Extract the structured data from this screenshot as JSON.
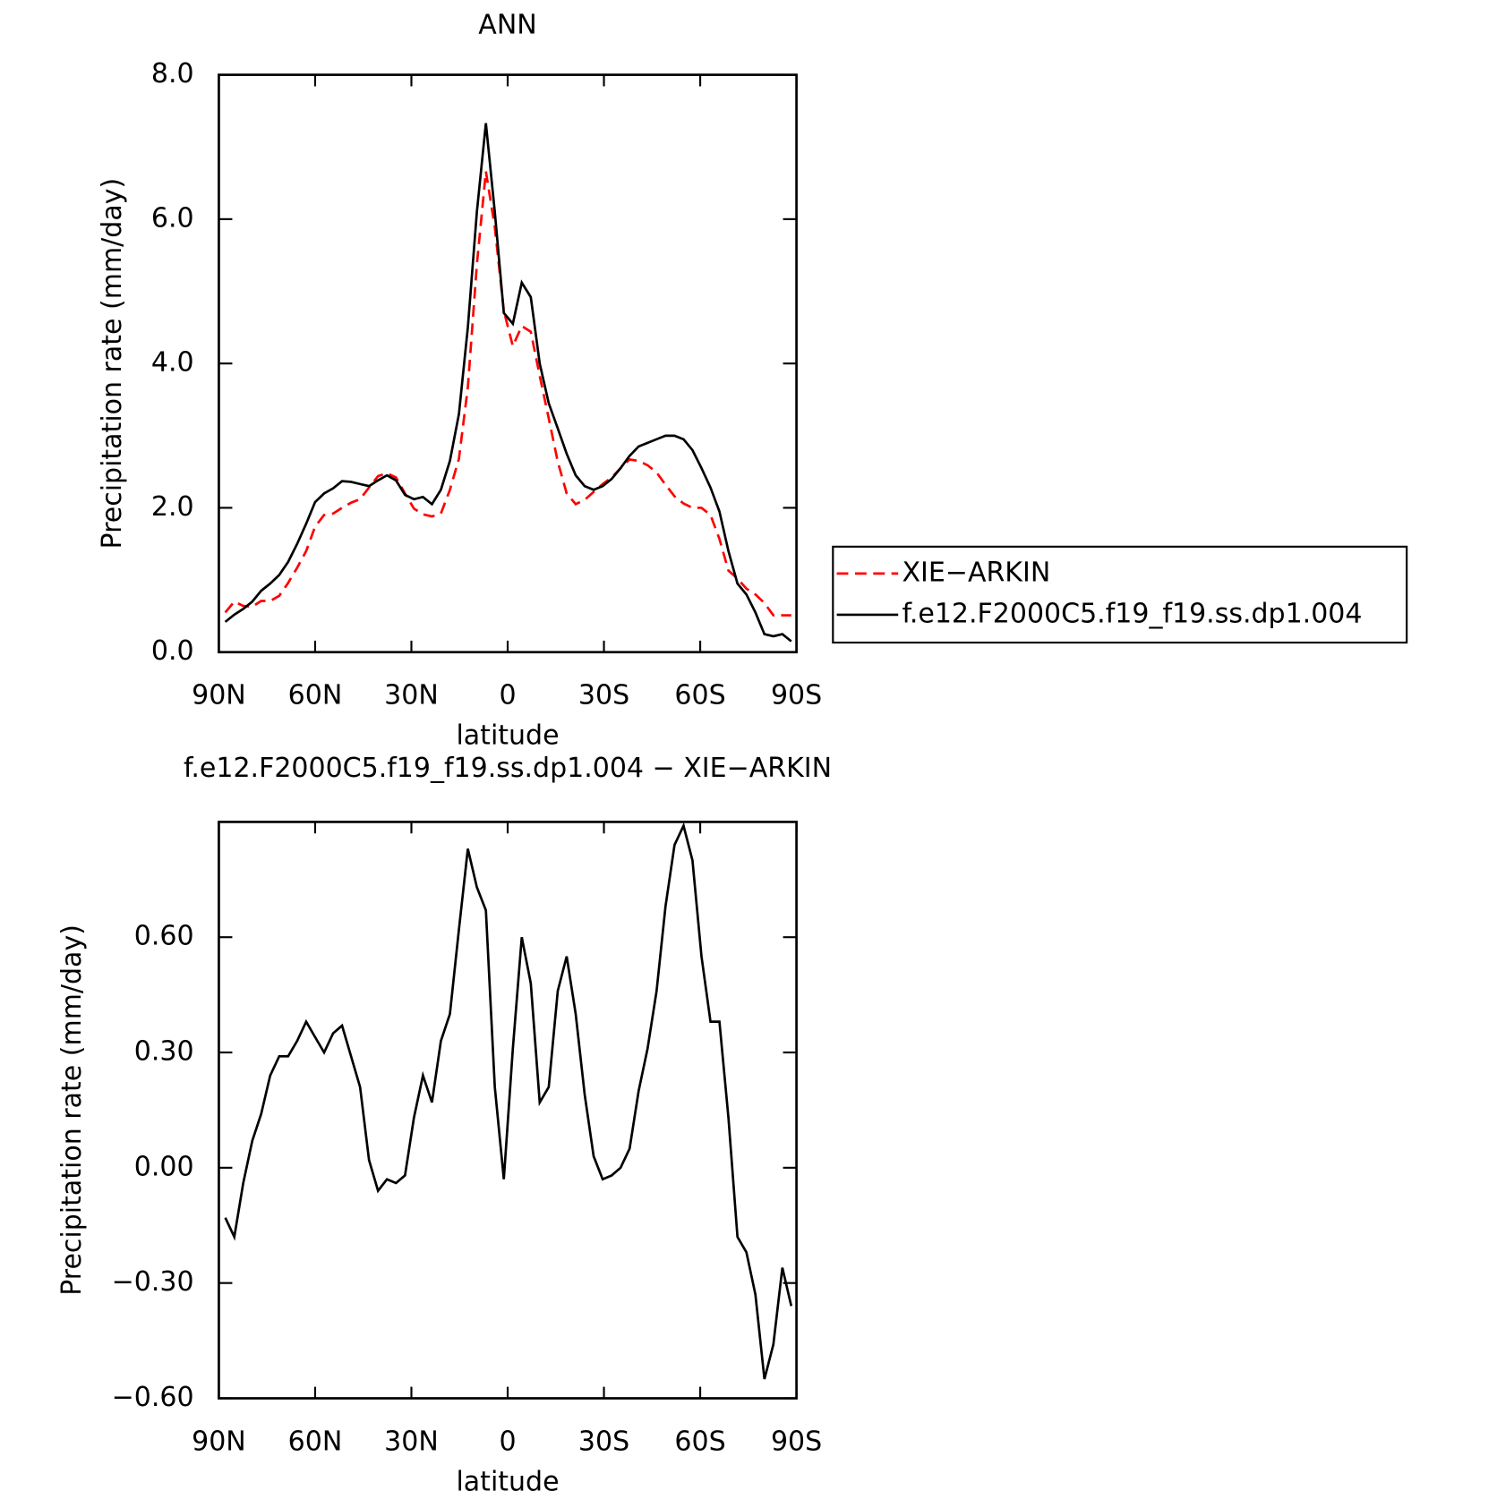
{
  "chart_data": [
    {
      "type": "line",
      "title": "ANN",
      "xlabel": "latitude",
      "ylabel": "Precipitation rate (mm/day)",
      "xlim": [
        90,
        -90
      ],
      "xticks": [
        {
          "value": 90,
          "label": "90N"
        },
        {
          "value": 60,
          "label": "60N"
        },
        {
          "value": 30,
          "label": "30N"
        },
        0,
        {
          "value": -30,
          "label": "30S"
        },
        {
          "value": -60,
          "label": "60S"
        },
        {
          "value": -90,
          "label": "90S"
        }
      ],
      "ylim": [
        0,
        8
      ],
      "yticks": [
        {
          "value": 0,
          "label": "0.0"
        },
        {
          "value": 2,
          "label": "2.0"
        },
        {
          "value": 4,
          "label": "4.0"
        },
        {
          "value": 6,
          "label": "6.0"
        },
        {
          "value": 8,
          "label": "8.0"
        }
      ],
      "legend": "right",
      "x": [
        88,
        85.2,
        82.4,
        79.6,
        76.8,
        74,
        71.2,
        68.4,
        65.6,
        62.8,
        60,
        57.2,
        54.4,
        51.6,
        48.8,
        46,
        43.2,
        40.4,
        37.6,
        34.8,
        32,
        29.2,
        26.4,
        23.6,
        20.8,
        18,
        15.2,
        12.4,
        9.6,
        6.8,
        4,
        1.2,
        -1.6,
        -4.4,
        -7.2,
        -10,
        -12.8,
        -15.6,
        -18.4,
        -21.2,
        -24,
        -26.8,
        -29.6,
        -32.4,
        -35.2,
        -38,
        -40.8,
        -43.6,
        -46.4,
        -49.2,
        -52,
        -54.8,
        -57.6,
        -60.4,
        -63.2,
        -66,
        -68.8,
        -71.6,
        -74.4,
        -77.2,
        -80,
        -82.8,
        -85.6,
        -88.4
      ],
      "series": [
        {
          "name": "XIE−ARKIN",
          "color": "#ff0000",
          "dashed": true,
          "values": [
            0.55,
            0.7,
            0.64,
            0.63,
            0.71,
            0.71,
            0.78,
            0.96,
            1.17,
            1.4,
            1.74,
            1.9,
            1.92,
            2.0,
            2.07,
            2.12,
            2.28,
            2.44,
            2.48,
            2.42,
            2.2,
            1.99,
            1.91,
            1.88,
            1.92,
            2.25,
            2.68,
            3.67,
            5.37,
            6.66,
            5.89,
            4.73,
            4.24,
            4.52,
            4.44,
            3.83,
            3.24,
            2.64,
            2.2,
            2.05,
            2.11,
            2.22,
            2.33,
            2.42,
            2.55,
            2.67,
            2.65,
            2.59,
            2.49,
            2.32,
            2.16,
            2.06,
            2.0,
            2.0,
            1.9,
            1.57,
            1.13,
            1.02,
            0.88,
            0.8,
            0.68,
            0.51,
            0.51,
            0.51
          ]
        },
        {
          "name": "f.e12.F2000C5.f19_f19.ss.dp1.004",
          "color": "#000000",
          "dashed": false,
          "values": [
            0.42,
            0.52,
            0.6,
            0.7,
            0.85,
            0.95,
            1.07,
            1.25,
            1.5,
            1.78,
            2.08,
            2.2,
            2.27,
            2.37,
            2.36,
            2.33,
            2.3,
            2.38,
            2.45,
            2.38,
            2.18,
            2.12,
            2.15,
            2.05,
            2.25,
            2.65,
            3.3,
            4.5,
            6.1,
            7.33,
            6.1,
            4.7,
            4.55,
            5.12,
            4.92,
            4.0,
            3.45,
            3.1,
            2.75,
            2.45,
            2.3,
            2.25,
            2.3,
            2.4,
            2.55,
            2.72,
            2.85,
            2.9,
            2.95,
            3.0,
            3.0,
            2.95,
            2.8,
            2.55,
            2.28,
            1.95,
            1.4,
            0.95,
            0.8,
            0.55,
            0.25,
            0.22,
            0.25,
            0.15
          ]
        }
      ]
    },
    {
      "type": "line",
      "title": "f.e12.F2000C5.f19_f19.ss.dp1.004 − XIE−ARKIN",
      "xlabel": "latitude",
      "ylabel": "Precipitation rate (mm/day)",
      "xlim": [
        90,
        -90
      ],
      "xticks": [
        {
          "value": 90,
          "label": "90N"
        },
        {
          "value": 60,
          "label": "60N"
        },
        {
          "value": 30,
          "label": "30N"
        },
        0,
        {
          "value": -30,
          "label": "30S"
        },
        {
          "value": -60,
          "label": "60S"
        },
        {
          "value": -90,
          "label": "90S"
        }
      ],
      "ylim": [
        -0.6,
        0.9
      ],
      "yticks": [
        {
          "value": -0.6,
          "label": "−0.60"
        },
        {
          "value": -0.3,
          "label": "−0.30"
        },
        {
          "value": 0,
          "label": "0.00"
        },
        {
          "value": 0.3,
          "label": "0.30"
        },
        {
          "value": 0.6,
          "label": "0.60"
        }
      ],
      "x": [
        88,
        85.2,
        82.4,
        79.6,
        76.8,
        74,
        71.2,
        68.4,
        65.6,
        62.8,
        60,
        57.2,
        54.4,
        51.6,
        48.8,
        46,
        43.2,
        40.4,
        37.6,
        34.8,
        32,
        29.2,
        26.4,
        23.6,
        20.8,
        18,
        15.2,
        12.4,
        9.6,
        6.8,
        4,
        1.2,
        -1.6,
        -4.4,
        -7.2,
        -10,
        -12.8,
        -15.6,
        -18.4,
        -21.2,
        -24,
        -26.8,
        -29.6,
        -32.4,
        -35.2,
        -38,
        -40.8,
        -43.6,
        -46.4,
        -49.2,
        -52,
        -54.8,
        -57.6,
        -60.4,
        -63.2,
        -66,
        -68.8,
        -71.6,
        -74.4,
        -77.2,
        -80,
        -82.8,
        -85.6,
        -88.4
      ],
      "color": "#000000",
      "values": [
        -0.13,
        -0.18,
        -0.04,
        0.07,
        0.14,
        0.24,
        0.29,
        0.29,
        0.33,
        0.38,
        0.34,
        0.3,
        0.35,
        0.37,
        0.29,
        0.21,
        0.02,
        -0.06,
        -0.03,
        -0.04,
        -0.02,
        0.13,
        0.24,
        0.17,
        0.33,
        0.4,
        0.62,
        0.83,
        0.73,
        0.67,
        0.21,
        -0.03,
        0.31,
        0.6,
        0.48,
        0.17,
        0.21,
        0.46,
        0.55,
        0.4,
        0.19,
        0.03,
        -0.03,
        -0.02,
        0.0,
        0.05,
        0.2,
        0.31,
        0.46,
        0.68,
        0.84,
        0.89,
        0.8,
        0.55,
        0.38,
        0.38,
        0.13,
        -0.18,
        -0.22,
        -0.33,
        -0.55,
        -0.46,
        -0.26,
        -0.36
      ]
    }
  ]
}
